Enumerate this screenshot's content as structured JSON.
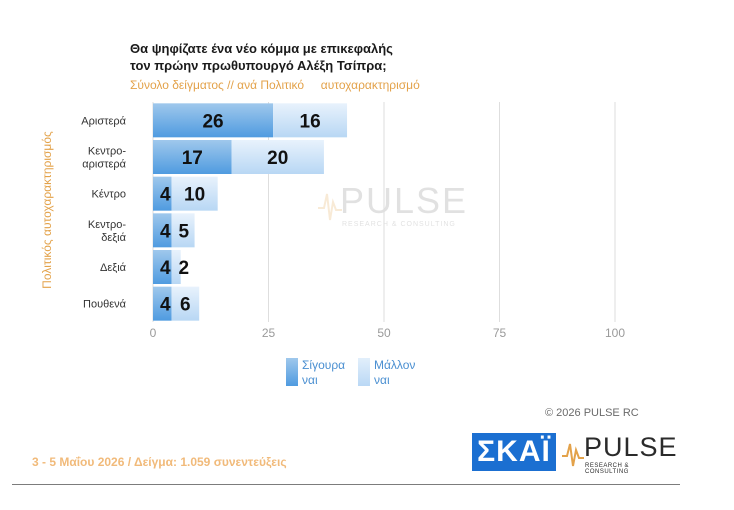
{
  "header": {
    "title_line1": "Θα ψηφίζατε ένα νέο κόμμα με επικεφαλής",
    "title_line2": "τον πρώην πρωθυπουργό Αλέξη Τσίπρα;",
    "subtitle": "Σύνολο δείγματος // ανά Πολιτικό     αυτοχαρακτηρισμό"
  },
  "watermark": {
    "word": "PULSE",
    "sub": "RESEARCH & CONSULTING"
  },
  "chart_data": {
    "type": "bar",
    "orientation": "horizontal",
    "stacked": true,
    "categories": [
      [
        "Αριστερά"
      ],
      [
        "Κεντρο-",
        "αριστερά"
      ],
      [
        "Κέντρο"
      ],
      [
        "Κεντρο-",
        "δεξιά"
      ],
      [
        "Δεξιά"
      ],
      [
        "Πουθενά"
      ]
    ],
    "series": [
      {
        "name": "Σίγουρα ναι",
        "values": [
          26,
          17,
          4,
          4,
          4,
          4
        ],
        "color": "#4f9be0"
      },
      {
        "name": "Μάλλον ναι",
        "values": [
          16,
          20,
          10,
          5,
          2,
          6
        ],
        "color": "#bad8f5"
      }
    ],
    "xlim": [
      0,
      100
    ],
    "xticks": [
      0,
      25,
      50,
      75,
      100
    ],
    "ylabel": "Πολιτικός αυτοχαρακτηρισμός",
    "grid": true,
    "legend": "bottom"
  },
  "legend": {
    "items": [
      {
        "line1": "Σίγουρα",
        "line2": "ναι"
      },
      {
        "line1": "Μάλλον",
        "line2": "ναι"
      }
    ]
  },
  "footer": {
    "copyright": "©  2026  PULSE RC",
    "fieldwork": "3 - 5  Μαΐου 2026  /  Δείγμα:  1.059 συνεντεύξεις"
  },
  "logos": {
    "skai": "ΣΚΑΪ",
    "pulse": "PULSE",
    "pulse_sub": "RESEARCH & CONSULTING"
  }
}
